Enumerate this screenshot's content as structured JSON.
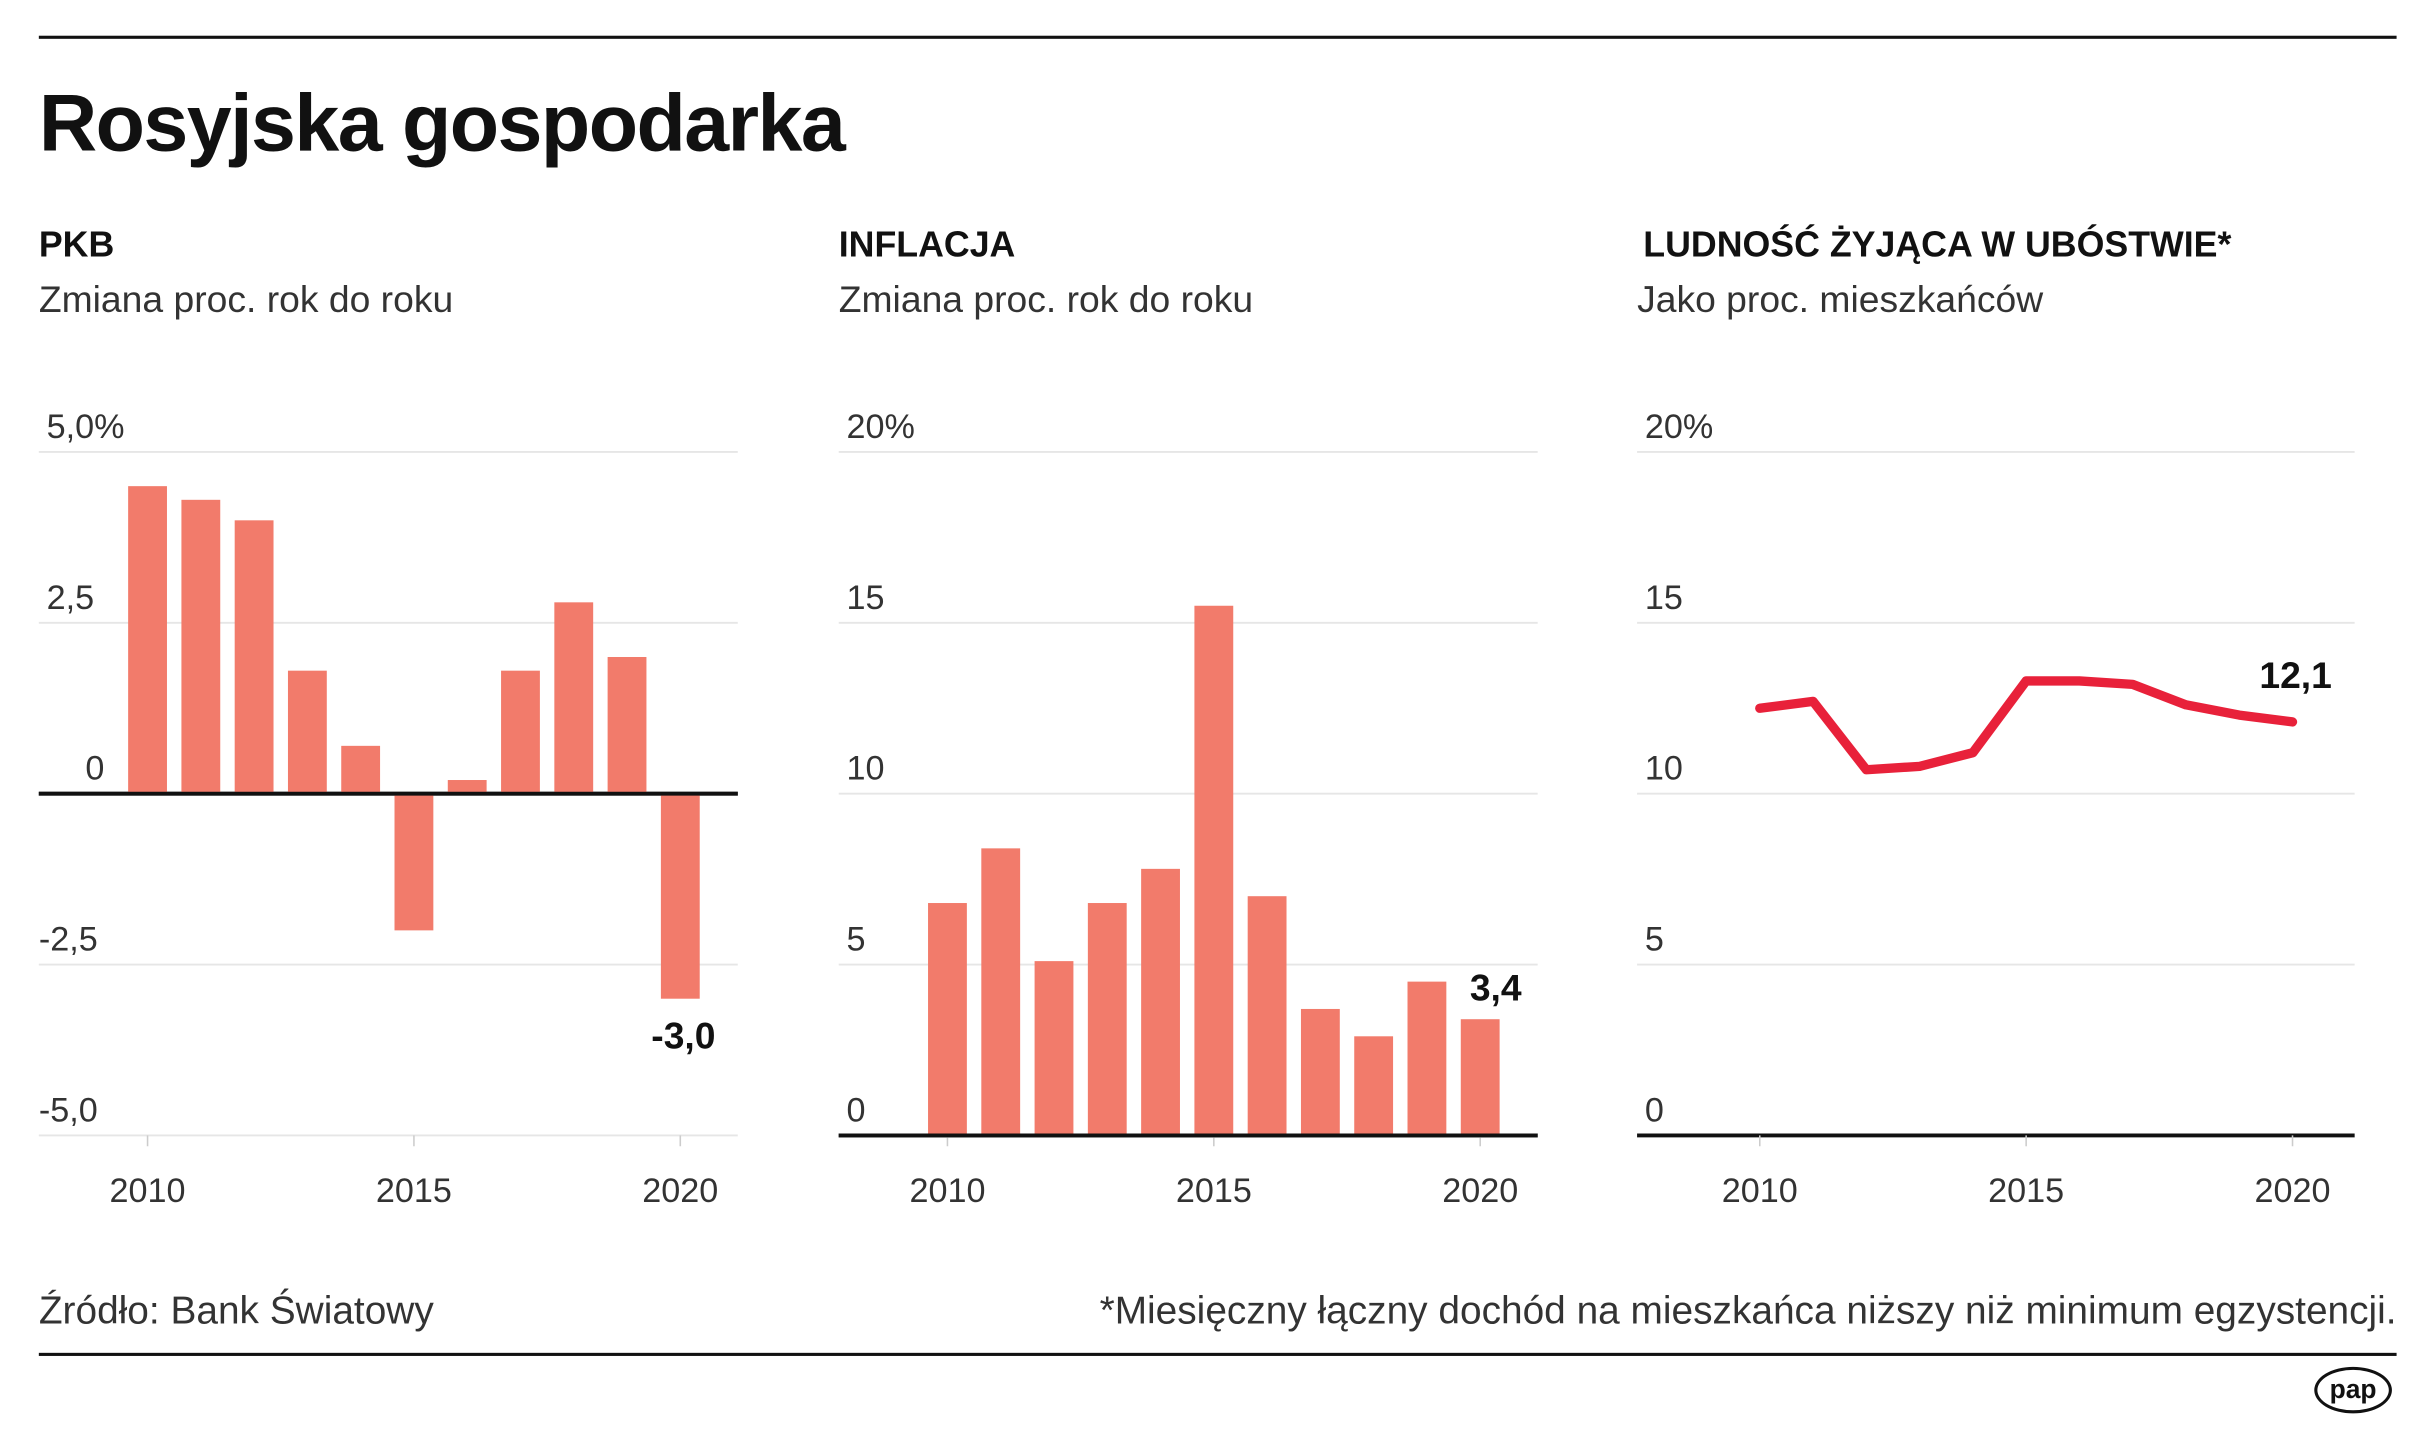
{
  "title": "Rosyjska gospodarka",
  "source": "Źródło: Bank Światowy",
  "footnote": "*Miesięczny łączny dochód na mieszkańca niższy niż minimum egzystencji.",
  "logo": "pap",
  "colors": {
    "bar": "#f27b6b",
    "line": "#e8213a",
    "axis": "#111111",
    "grid": "#e6e6e6"
  },
  "chart_data": [
    {
      "type": "bar",
      "title": "PKB",
      "subtitle": "Zmiana proc. rok do roku",
      "x": [
        2010,
        2011,
        2012,
        2013,
        2014,
        2015,
        2016,
        2017,
        2018,
        2019,
        2020
      ],
      "values": [
        4.5,
        4.3,
        4.0,
        1.8,
        0.7,
        -2.0,
        0.2,
        1.8,
        2.8,
        2.0,
        -3.0
      ],
      "ylim": [
        -5,
        5
      ],
      "yticks": [
        -5,
        -2.5,
        0,
        2.5,
        5
      ],
      "ytick_labels": [
        "-5,0",
        "-2,5",
        "0",
        "2,5",
        "5,0%"
      ],
      "xticks": [
        2010,
        2015,
        2020
      ],
      "xtick_labels": [
        "2010",
        "2015",
        "2020"
      ],
      "annotation": {
        "x": 2020,
        "text": "-3,0"
      },
      "grid": true
    },
    {
      "type": "bar",
      "title": "INFLACJA",
      "subtitle": "Zmiana proc. rok do roku",
      "x": [
        2010,
        2011,
        2012,
        2013,
        2014,
        2015,
        2016,
        2017,
        2018,
        2019,
        2020
      ],
      "values": [
        6.8,
        8.4,
        5.1,
        6.8,
        7.8,
        15.5,
        7.0,
        3.7,
        2.9,
        4.5,
        3.4
      ],
      "ylim": [
        0,
        20
      ],
      "yticks": [
        0,
        5,
        10,
        15,
        20
      ],
      "ytick_labels": [
        "0",
        "5",
        "10",
        "15",
        "20%"
      ],
      "xticks": [
        2010,
        2015,
        2020
      ],
      "xtick_labels": [
        "2010",
        "2015",
        "2020"
      ],
      "annotation": {
        "x": 2020,
        "text": "3,4"
      },
      "grid": true
    },
    {
      "type": "line",
      "title": "LUDNOŚĆ ŻYJĄCA W UBÓSTWIE*",
      "subtitle": "Jako proc. mieszkańców",
      "x": [
        2010,
        2011,
        2012,
        2013,
        2014,
        2015,
        2016,
        2017,
        2018,
        2019,
        2020
      ],
      "values": [
        12.5,
        12.7,
        10.7,
        10.8,
        11.2,
        13.3,
        13.3,
        13.2,
        12.6,
        12.3,
        12.1
      ],
      "ylim": [
        0,
        20
      ],
      "yticks": [
        0,
        5,
        10,
        15,
        20
      ],
      "ytick_labels": [
        "0",
        "5",
        "10",
        "15",
        "20%"
      ],
      "xticks": [
        2010,
        2015,
        2020
      ],
      "xtick_labels": [
        "2010",
        "2015",
        "2020"
      ],
      "annotation": {
        "x": 2020,
        "text": "12,1"
      },
      "grid": true
    }
  ]
}
